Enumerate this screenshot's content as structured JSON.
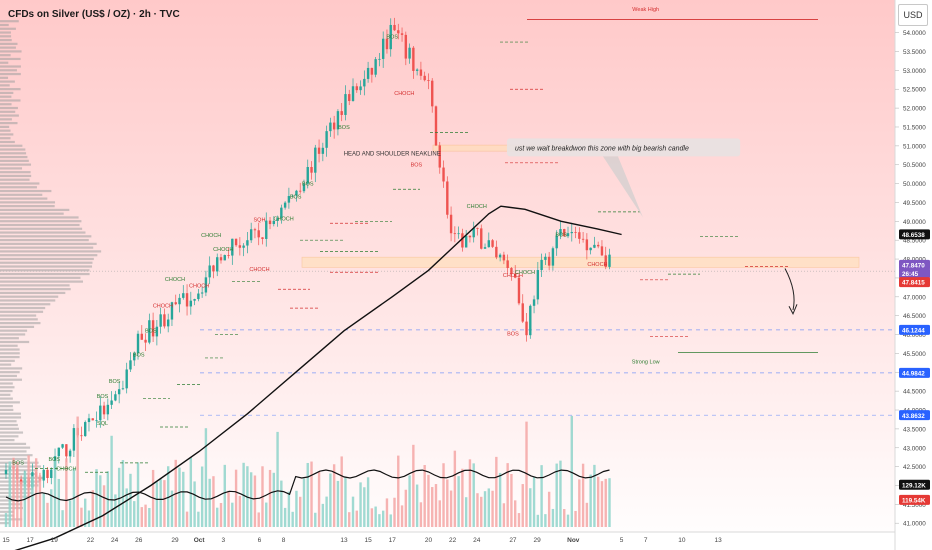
{
  "header": {
    "title": "CFDs on Silver (US$ / OZ) · 2h · TVC",
    "currency": "USD"
  },
  "colors": {
    "background_top": "#ffc9c9",
    "background_bottom": "#ffffff",
    "bullish": "#26a69a",
    "bearish": "#ef5350",
    "ma": "#111111",
    "ma_badge": "#111111",
    "price_badge": "#7e57c2",
    "level_badge": "#2962ff",
    "bearish_badge": "#e53935",
    "zone": "#ffe0b2",
    "structure_green": "#2e7d32",
    "structure_red": "#d32f2f"
  },
  "chart_data": {
    "type": "candlestick",
    "y_axis": {
      "min": 40.9,
      "max": 54.6,
      "ticks": [
        "54.0000",
        "53.5000",
        "53.0000",
        "52.5000",
        "52.0000",
        "51.5000",
        "51.0000",
        "50.5000",
        "50.0000",
        "49.5000",
        "49.0000",
        "48.5000",
        "48.0000",
        "47.5000",
        "47.0000",
        "46.5000",
        "46.0000",
        "45.5000",
        "45.0000",
        "44.5000",
        "44.0000",
        "43.5000",
        "43.0000",
        "42.5000",
        "42.0000",
        "41.5000",
        "41.0000"
      ]
    },
    "x_axis": {
      "labels": [
        "15",
        "17",
        "19",
        "22",
        "24",
        "26",
        "29",
        "Oct",
        "3",
        "6",
        "8",
        "13",
        "15",
        "17",
        "20",
        "22",
        "24",
        "27",
        "29",
        "Nov",
        "5",
        "7",
        "10",
        "13"
      ]
    },
    "price_points": [
      [
        "Sep 15",
        42.3
      ],
      [
        "Sep 17",
        42.1
      ],
      [
        "Sep 19",
        42.6
      ],
      [
        "Sep 22",
        43.8
      ],
      [
        "Sep 24",
        44.1
      ],
      [
        "Sep 26",
        45.9
      ],
      [
        "Sep 29",
        46.7
      ],
      [
        "Oct 1",
        47.2
      ],
      [
        "Oct 3",
        48.3
      ],
      [
        "Oct 6",
        48.6
      ],
      [
        "Oct 8",
        49.4
      ],
      [
        "Oct 10",
        50.3
      ],
      [
        "Oct 13",
        52.2
      ],
      [
        "Oct 15",
        52.8
      ],
      [
        "Oct 17",
        54.1
      ],
      [
        "Oct 20",
        52.5
      ],
      [
        "Oct 22",
        48.4
      ],
      [
        "Oct 24",
        48.6
      ],
      [
        "Oct 27",
        47.8
      ],
      [
        "Oct 28",
        46.0
      ],
      [
        "Oct 29",
        47.5
      ],
      [
        "Oct 31",
        48.7
      ],
      [
        "Nov 3",
        48.4
      ],
      [
        "Nov 4",
        47.9
      ]
    ],
    "series": [
      {
        "name": "moving average",
        "color": "#111111"
      }
    ],
    "price_labels": [
      {
        "value": "48.6538",
        "price": 48.654,
        "kind": "ma"
      },
      {
        "value": "47.8470",
        "price": 47.847,
        "kind": "current"
      },
      {
        "value": "26:45",
        "price": 47.62,
        "kind": "countdown"
      },
      {
        "value": "47.8415",
        "price": 47.39,
        "kind": "bearish"
      },
      {
        "value": "46.1244",
        "price": 46.124,
        "kind": "level"
      },
      {
        "value": "44.9842",
        "price": 44.984,
        "kind": "level"
      },
      {
        "value": "43.8632",
        "price": 43.863,
        "kind": "level"
      },
      {
        "value": "129.12K",
        "price": 42.02,
        "kind": "ma"
      },
      {
        "value": "119.54K",
        "price": 41.62,
        "kind": "bearish"
      }
    ],
    "annotations": [
      {
        "text": "Weak High",
        "price": 54.58,
        "date": "Nov 7"
      },
      {
        "text": "Strong Low",
        "price": 45.23,
        "date": "Nov 7"
      },
      {
        "text": "HEAD AND SHOULDER NEAKLINE",
        "price": 50.75,
        "date": "Oct 17"
      },
      {
        "text": "ust we wait breakdwon this zone with big bearish candle",
        "price": 50.96,
        "date": "Oct 27"
      },
      {
        "text": "BOS",
        "price": 53.85,
        "date": "Oct 17",
        "color": "green"
      },
      {
        "text": "CHOCH",
        "price": 52.35,
        "date": "Oct 18",
        "color": "red"
      },
      {
        "text": "BOS",
        "price": 51.45,
        "date": "Oct 13",
        "color": "green"
      },
      {
        "text": "BOS",
        "price": 50.45,
        "date": "Oct 19",
        "color": "red"
      },
      {
        "text": "BOS",
        "price": 49.95,
        "date": "Oct 10",
        "color": "green"
      },
      {
        "text": "CHOCH",
        "price": 49.35,
        "date": "Oct 24",
        "color": "green"
      },
      {
        "text": "CHOCH",
        "price": 49.02,
        "date": "Oct 8",
        "color": "green"
      },
      {
        "text": "BOS",
        "price": 49.6,
        "date": "Oct 9",
        "color": "green"
      },
      {
        "text": "SQH",
        "price": 49.0,
        "date": "Oct 6",
        "color": "red"
      },
      {
        "text": "CHOCH",
        "price": 48.58,
        "date": "Oct 2",
        "color": "green"
      },
      {
        "text": "CHOCH",
        "price": 48.22,
        "date": "Oct 3",
        "color": "green"
      },
      {
        "text": "CHOCH",
        "price": 47.68,
        "date": "Oct 6",
        "color": "red"
      },
      {
        "text": "CHOCH",
        "price": 47.42,
        "date": "Sep 29",
        "color": "green"
      },
      {
        "text": "CHOCH",
        "price": 47.25,
        "date": "Oct 1",
        "color": "red"
      },
      {
        "text": "CHOCH",
        "price": 46.72,
        "date": "Sep 28",
        "color": "red"
      },
      {
        "text": "CHOCH",
        "price": 47.52,
        "date": "Oct 27",
        "color": "red"
      },
      {
        "text": "CHOCH",
        "price": 47.6,
        "date": "Oct 28",
        "color": "green"
      },
      {
        "text": "BOS",
        "price": 48.6,
        "date": "Oct 31",
        "color": "green"
      },
      {
        "text": "CHOCH",
        "price": 47.82,
        "date": "Nov 3",
        "color": "red"
      },
      {
        "text": "BOS",
        "price": 45.98,
        "date": "Oct 27",
        "color": "red"
      },
      {
        "text": "BOS",
        "price": 46.05,
        "date": "Sep 27",
        "color": "green"
      },
      {
        "text": "BOS",
        "price": 45.42,
        "date": "Sep 26",
        "color": "green"
      },
      {
        "text": "BOS",
        "price": 44.72,
        "date": "Sep 24",
        "color": "green"
      },
      {
        "text": "BOS",
        "price": 44.32,
        "date": "Sep 23",
        "color": "green"
      },
      {
        "text": "SQL",
        "price": 43.6,
        "date": "Sep 23",
        "color": "green"
      },
      {
        "text": "BOS",
        "price": 42.65,
        "date": "Sep 19",
        "color": "green"
      },
      {
        "text": "BOS",
        "price": 42.55,
        "date": "Sep 16",
        "color": "green"
      },
      {
        "text": "CHOCH",
        "price": 42.4,
        "date": "Sep 20",
        "color": "green"
      }
    ],
    "levels": [
      46.124,
      44.984,
      43.863
    ]
  }
}
